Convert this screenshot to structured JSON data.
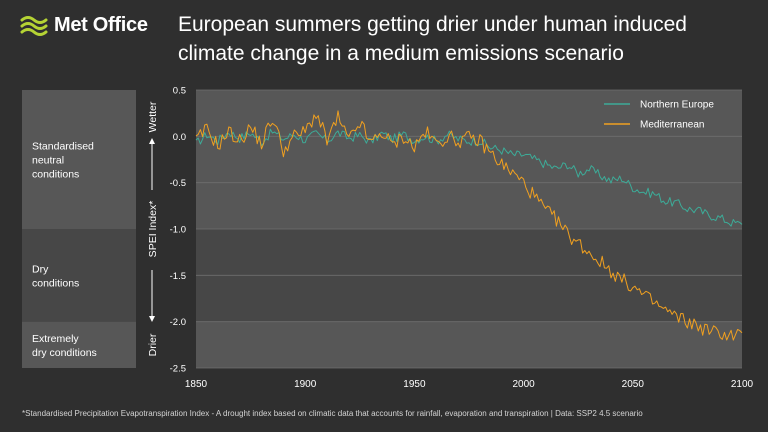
{
  "brand": {
    "name": "Met Office"
  },
  "title": "European summers getting drier under human induced climate change in a medium emissions scenario",
  "footnote": "*Standardised Precipitation Evapotranspiration Index - A drought index based on climatic data that accounts for rainfall, evaporation and transpiration  |  Data: SSP2 4.5 scenario",
  "bands": [
    {
      "label": [
        "Standardised",
        "neutral",
        "conditions"
      ],
      "from": 0.5,
      "to": -1.0
    },
    {
      "label": [
        "Dry",
        "conditions"
      ],
      "from": -1.0,
      "to": -2.0
    },
    {
      "label": [
        "Extremely",
        "dry conditions"
      ],
      "from": -2.0,
      "to": -2.5
    }
  ],
  "y_indicators": {
    "upper": "Wetter",
    "lower": "Drier"
  },
  "colors": {
    "northern_europe": "#3dab98",
    "mediterranean": "#f0a020",
    "band_light": "#575757",
    "band_dark": "#474747",
    "background": "#2f2f2f",
    "brand_green": "#b5d334"
  },
  "chart_data": {
    "type": "line",
    "title": "European summers getting drier under human induced climate change in a medium emissions scenario",
    "ylabel": "SPEI Index*",
    "xlabel": "",
    "xlim": [
      1850,
      2100
    ],
    "ylim": [
      -2.5,
      0.5
    ],
    "xticks": [
      1850,
      1900,
      1950,
      2000,
      2050,
      2100
    ],
    "yticks": [
      0.5,
      0.0,
      -0.5,
      -1.0,
      -1.5,
      -2.0,
      -2.5
    ],
    "ytick_labels": [
      "0.5",
      "0.0",
      "-0.5",
      "-1.0",
      "-1.5",
      "-2.0",
      "-2.5"
    ],
    "legend_position": "top-right",
    "series": [
      {
        "name": "Northern Europe",
        "color": "#3dab98",
        "points": [
          [
            1850,
            -0.08
          ],
          [
            1855,
            0.02
          ],
          [
            1860,
            -0.05
          ],
          [
            1865,
            0.05
          ],
          [
            1870,
            -0.02
          ],
          [
            1875,
            0.04
          ],
          [
            1880,
            -0.06
          ],
          [
            1885,
            0.05
          ],
          [
            1890,
            -0.03
          ],
          [
            1895,
            0.02
          ],
          [
            1900,
            -0.04
          ],
          [
            1905,
            0.03
          ],
          [
            1910,
            -0.05
          ],
          [
            1915,
            0.04
          ],
          [
            1920,
            -0.02
          ],
          [
            1925,
            0.01
          ],
          [
            1930,
            -0.06
          ],
          [
            1935,
            0.03
          ],
          [
            1940,
            -0.03
          ],
          [
            1945,
            0.02
          ],
          [
            1950,
            -0.04
          ],
          [
            1955,
            0.0
          ],
          [
            1960,
            -0.05
          ],
          [
            1965,
            0.02
          ],
          [
            1970,
            -0.03
          ],
          [
            1975,
            -0.05
          ],
          [
            1980,
            -0.05
          ],
          [
            1985,
            -0.12
          ],
          [
            1990,
            -0.15
          ],
          [
            1995,
            -0.2
          ],
          [
            2000,
            -0.2
          ],
          [
            2005,
            -0.25
          ],
          [
            2010,
            -0.3
          ],
          [
            2015,
            -0.35
          ],
          [
            2020,
            -0.3
          ],
          [
            2025,
            -0.4
          ],
          [
            2030,
            -0.35
          ],
          [
            2035,
            -0.42
          ],
          [
            2040,
            -0.48
          ],
          [
            2045,
            -0.45
          ],
          [
            2050,
            -0.55
          ],
          [
            2055,
            -0.6
          ],
          [
            2060,
            -0.62
          ],
          [
            2065,
            -0.7
          ],
          [
            2070,
            -0.72
          ],
          [
            2075,
            -0.78
          ],
          [
            2080,
            -0.8
          ],
          [
            2085,
            -0.85
          ],
          [
            2090,
            -0.88
          ],
          [
            2095,
            -0.93
          ],
          [
            2100,
            -0.95
          ]
        ]
      },
      {
        "name": "Mediterranean",
        "color": "#f0a020",
        "points": [
          [
            1850,
            -0.05
          ],
          [
            1855,
            0.08
          ],
          [
            1860,
            -0.1
          ],
          [
            1865,
            0.05
          ],
          [
            1870,
            -0.05
          ],
          [
            1875,
            0.1
          ],
          [
            1880,
            -0.08
          ],
          [
            1885,
            0.2
          ],
          [
            1890,
            -0.15
          ],
          [
            1895,
            0.0
          ],
          [
            1900,
            0.05
          ],
          [
            1905,
            0.25
          ],
          [
            1910,
            -0.05
          ],
          [
            1915,
            0.2
          ],
          [
            1920,
            -0.05
          ],
          [
            1925,
            0.15
          ],
          [
            1930,
            -0.08
          ],
          [
            1935,
            0.05
          ],
          [
            1940,
            -0.1
          ],
          [
            1945,
            0.0
          ],
          [
            1950,
            -0.12
          ],
          [
            1955,
            0.05
          ],
          [
            1960,
            -0.08
          ],
          [
            1965,
            0.0
          ],
          [
            1970,
            -0.05
          ],
          [
            1975,
            -0.02
          ],
          [
            1980,
            -0.05
          ],
          [
            1985,
            -0.18
          ],
          [
            1990,
            -0.3
          ],
          [
            1995,
            -0.4
          ],
          [
            2000,
            -0.5
          ],
          [
            2005,
            -0.65
          ],
          [
            2010,
            -0.8
          ],
          [
            2015,
            -0.9
          ],
          [
            2020,
            -1.05
          ],
          [
            2025,
            -1.15
          ],
          [
            2030,
            -1.25
          ],
          [
            2035,
            -1.35
          ],
          [
            2040,
            -1.45
          ],
          [
            2045,
            -1.55
          ],
          [
            2050,
            -1.62
          ],
          [
            2055,
            -1.72
          ],
          [
            2060,
            -1.8
          ],
          [
            2065,
            -1.88
          ],
          [
            2070,
            -1.95
          ],
          [
            2075,
            -2.0
          ],
          [
            2080,
            -2.05
          ],
          [
            2085,
            -2.1
          ],
          [
            2090,
            -2.12
          ],
          [
            2095,
            -2.15
          ],
          [
            2100,
            -2.12
          ]
        ]
      }
    ]
  }
}
